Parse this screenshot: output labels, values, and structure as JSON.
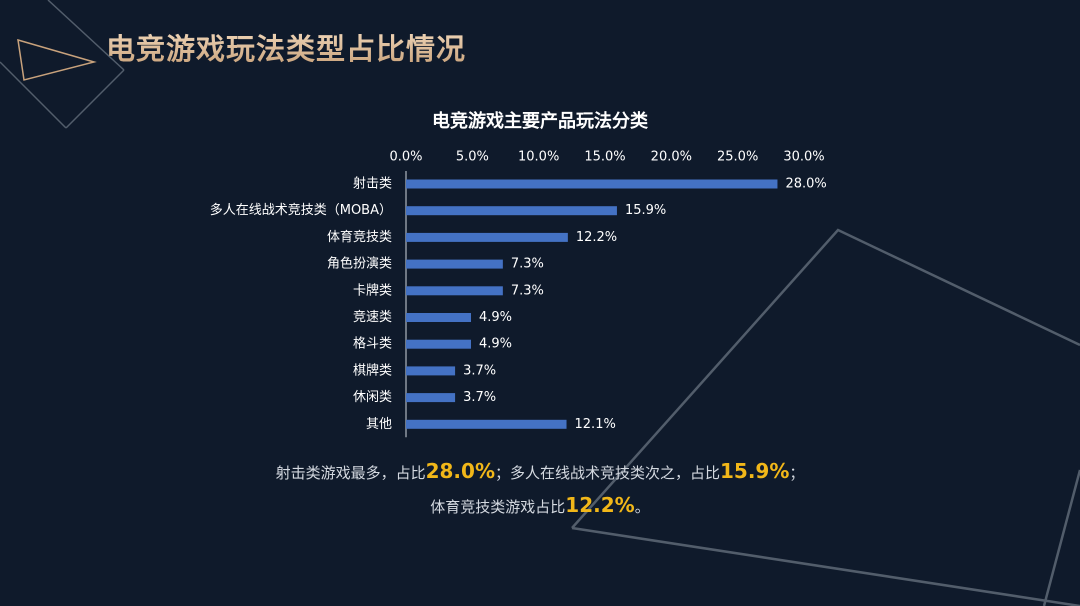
{
  "page": {
    "title": "电竞游戏玩法类型占比情况"
  },
  "colors": {
    "background": "#0f1a2b",
    "bar": "#4472c4",
    "highlight": "#f1b719",
    "title_gold": "#e0c19f",
    "deco_line": "#525d6b"
  },
  "chart_data": {
    "type": "bar",
    "orientation": "horizontal",
    "title": "电竞游戏主要产品玩法分类",
    "categories": [
      "射击类",
      "多人在线战术竞技类（MOBA）",
      "体育竞技类",
      "角色扮演类",
      "卡牌类",
      "竞速类",
      "格斗类",
      "棋牌类",
      "休闲类",
      "其他"
    ],
    "values": [
      28.0,
      15.9,
      12.2,
      7.3,
      7.3,
      4.9,
      4.9,
      3.7,
      3.7,
      12.1
    ],
    "value_labels": [
      "28.0%",
      "15.9%",
      "12.2%",
      "7.3%",
      "7.3%",
      "4.9%",
      "4.9%",
      "3.7%",
      "3.7%",
      "12.1%"
    ],
    "xlim": [
      0,
      30
    ],
    "xticks": [
      "0.0%",
      "5.0%",
      "10.0%",
      "15.0%",
      "20.0%",
      "25.0%",
      "30.0%"
    ],
    "xaxis_position": "top",
    "grid": false,
    "legend": "none"
  },
  "summary": {
    "line1_a": "射击类游戏最多，占比",
    "line1_v1": "28.0%",
    "line1_b": "；多人在线战术竞技类次之，占比",
    "line1_v2": "15.9%",
    "line1_c": "；",
    "line2_a": "体育竞技类游戏占比",
    "line2_v": "12.2%",
    "line2_b": "。"
  }
}
